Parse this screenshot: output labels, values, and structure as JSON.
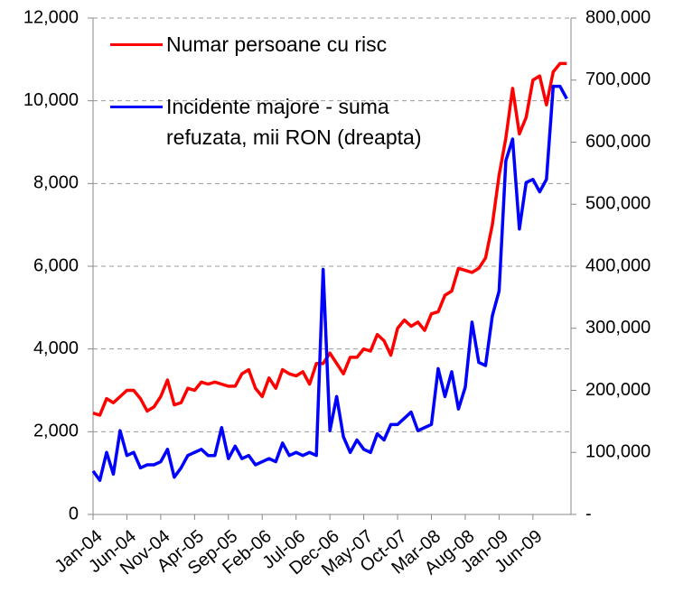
{
  "chart_data": {
    "type": "line",
    "legend": "upper left",
    "grid": true,
    "categories": [
      "Jan-04",
      null,
      null,
      null,
      null,
      "Jun-04",
      null,
      null,
      null,
      null,
      "Nov-04",
      null,
      null,
      null,
      null,
      "Apr-05",
      null,
      null,
      null,
      null,
      "Sep-05",
      null,
      null,
      null,
      null,
      "Feb-06",
      null,
      null,
      null,
      null,
      "Jul-06",
      null,
      null,
      null,
      null,
      "Dec-06",
      null,
      null,
      null,
      null,
      "May-07",
      null,
      null,
      null,
      null,
      "Oct-07",
      null,
      null,
      null,
      null,
      "Mar-08",
      null,
      null,
      null,
      null,
      "Aug-08",
      null,
      null,
      null,
      null,
      "Jan-09",
      null,
      null,
      null,
      null,
      "Jun-09",
      null,
      null,
      null,
      null,
      null
    ],
    "ylim": [
      0,
      12000
    ],
    "yticks": [
      0,
      {
        "value": 2000,
        "label": "2,000"
      },
      {
        "value": 4000,
        "label": "4,000"
      },
      {
        "value": 6000,
        "label": "6,000"
      },
      {
        "value": 8000,
        "label": "8,000"
      },
      {
        "value": 10000,
        "label": "10,000"
      },
      {
        "value": 12000,
        "label": "12,000"
      }
    ],
    "y2lim": [
      0,
      800000
    ],
    "y2ticks": [
      {
        "value": 0,
        "label": "-"
      },
      {
        "value": 100000,
        "label": "100,000"
      },
      {
        "value": 200000,
        "label": "200,000"
      },
      {
        "value": 300000,
        "label": "300,000"
      },
      {
        "value": 400000,
        "label": "400,000"
      },
      {
        "value": 500000,
        "label": "500,000"
      },
      {
        "value": 600000,
        "label": "600,000"
      },
      {
        "value": 700000,
        "label": "700,000"
      },
      {
        "value": 800000,
        "label": "800,000"
      }
    ],
    "series": [
      {
        "name": "Numar persoane cu risc",
        "color": "#ff0000",
        "values": [
          2450,
          2400,
          2800,
          2700,
          2850,
          3000,
          3000,
          2800,
          2500,
          2600,
          2850,
          3250,
          2650,
          2700,
          3050,
          3000,
          3200,
          3150,
          3200,
          3150,
          3100,
          3100,
          3400,
          3500,
          3050,
          2850,
          3300,
          3050,
          3500,
          3400,
          3350,
          3450,
          3150,
          3650,
          3650,
          3900,
          3650,
          3400,
          3800,
          3800,
          4000,
          3950,
          4350,
          4200,
          3850,
          4500,
          4700,
          4550,
          4650,
          4450,
          4850,
          4900,
          5300,
          5400,
          5950,
          5900,
          5850,
          5950,
          6200,
          7000,
          8200,
          9100,
          10300,
          9200,
          9600,
          10500,
          10600,
          9900,
          10700,
          10900,
          10900
        ]
      },
      {
        "name": "Incidente majore - suma refuzata, mii RON (dreapta)",
        "color": "#0000ff",
        "axis": "y2",
        "values": [
          70000,
          55000,
          100000,
          65000,
          135000,
          95000,
          100000,
          75000,
          80000,
          80000,
          85000,
          105000,
          60000,
          75000,
          95000,
          100000,
          105000,
          95000,
          95000,
          140000,
          90000,
          110000,
          90000,
          95000,
          80000,
          85000,
          90000,
          85000,
          115000,
          95000,
          100000,
          95000,
          100000,
          95000,
          395000,
          135000,
          190000,
          125000,
          100000,
          120000,
          105000,
          100000,
          130000,
          120000,
          145000,
          145000,
          155000,
          165000,
          135000,
          140000,
          145000,
          235000,
          190000,
          230000,
          170000,
          205000,
          310000,
          245000,
          240000,
          320000,
          360000,
          570000,
          605000,
          460000,
          535000,
          540000,
          520000,
          540000,
          690000,
          690000,
          670000
        ]
      }
    ]
  }
}
